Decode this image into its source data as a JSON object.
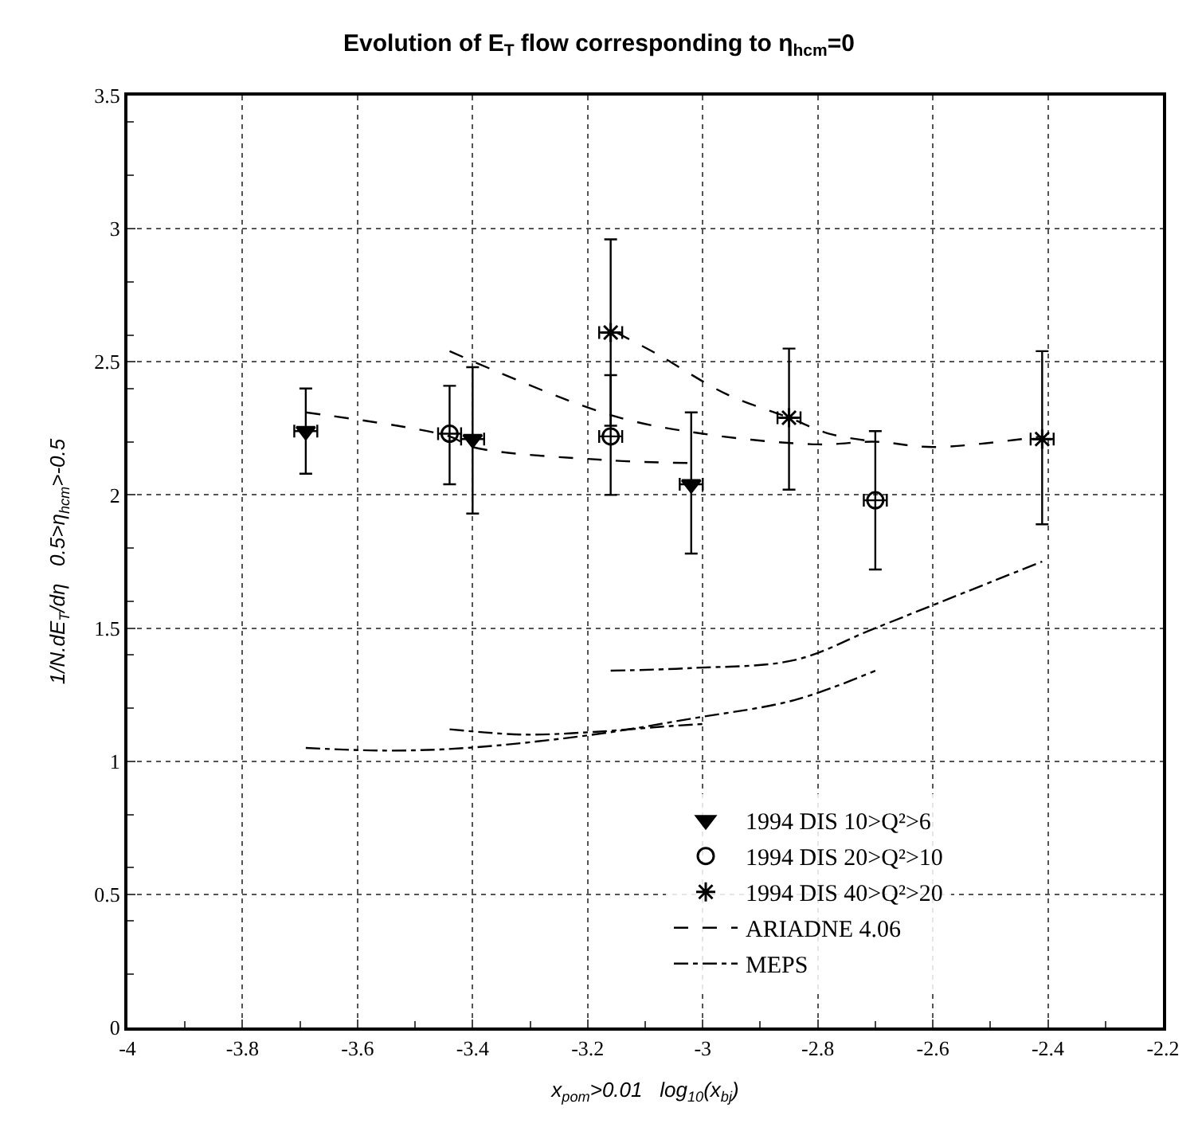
{
  "chart_data": {
    "type": "scatter",
    "title": "Evolution of E$_{T}$ flow corresponding to η$_{hcm}$=0",
    "xlabel": "x$_{pom}$>0.01   log$_{10}$(x$_{bj}$)",
    "ylabel": "1/N.dE$_{T}$/dη   0.5>η$_{hcm}$>-0.5",
    "xlim": [
      -4,
      -2.2
    ],
    "xticks": [
      -4,
      -3.8,
      -3.6,
      -3.4,
      -3.2,
      -3,
      -2.8,
      -2.6,
      -2.4,
      -2.2
    ],
    "ylim": [
      0,
      3.5
    ],
    "yticks": [
      0,
      0.5,
      1,
      1.5,
      2,
      2.5,
      3,
      3.5
    ],
    "grid": true,
    "legend": "bottom right",
    "series": [
      {
        "name": "1994 DIS 10>Q²>6",
        "marker": "triangle",
        "color": "#000000",
        "x": [
          -3.69,
          -3.4,
          -3.02
        ],
        "values": [
          2.24,
          2.21,
          2.04
        ],
        "errors": [
          [
            2.08,
            2.4
          ],
          [
            1.93,
            2.48
          ],
          [
            1.78,
            2.31
          ]
        ],
        "xerrors": [
          0.02,
          0.02,
          0.02
        ]
      },
      {
        "name": "1994 DIS 20>Q²>10",
        "marker": "circle",
        "color": "#000000",
        "x": [
          -3.44,
          -3.16,
          -2.7
        ],
        "values": [
          2.23,
          2.22,
          1.98
        ],
        "errors": [
          [
            2.04,
            2.41
          ],
          [
            2.0,
            2.45
          ],
          [
            1.72,
            2.24
          ]
        ],
        "xerrors": [
          0.02,
          0.02,
          0.02
        ]
      },
      {
        "name": "1994 DIS 40>Q²>20",
        "marker": "cross",
        "color": "#000000",
        "x": [
          -3.16,
          -2.85,
          -2.41
        ],
        "values": [
          2.61,
          2.29,
          2.21
        ],
        "errors": [
          [
            2.26,
            2.96
          ],
          [
            2.02,
            2.55
          ],
          [
            1.89,
            2.54
          ]
        ],
        "xerrors": [
          0.02,
          0.02,
          0.02
        ]
      },
      {
        "name": "ARIADNE 4.06",
        "type": "line",
        "marker": "none",
        "line_style": "dashed",
        "color": "#000000",
        "x": [
          -3.69,
          -3.44,
          -3.4,
          -3.16,
          -3.02
        ],
        "values": [
          2.31,
          2.22,
          2.18,
          2.13,
          2.12
        ]
      },
      {
        "type": "line",
        "marker": "none",
        "line_style": "dashed",
        "color": "#000000",
        "x": [
          -3.44,
          -3.16,
          -3.0,
          -2.8,
          -2.7,
          -2.6,
          -2.41
        ],
        "values": [
          2.54,
          2.3,
          2.23,
          2.19,
          2.2,
          2.18,
          2.22
        ]
      },
      {
        "type": "line",
        "marker": "none",
        "line_style": "dashed",
        "color": "#000000",
        "x": [
          -3.15,
          -3.08,
          -2.96,
          -2.85,
          -2.78,
          -2.7
        ],
        "values": [
          2.61,
          2.53,
          2.38,
          2.29,
          2.23,
          2.2
        ]
      },
      {
        "name": "MEPS",
        "type": "line",
        "marker": "none",
        "line_style": "dashdot",
        "color": "#000000",
        "x": [
          -3.16,
          -3.02,
          -2.84,
          -2.7,
          -2.41
        ],
        "values": [
          1.34,
          1.35,
          1.38,
          1.5,
          1.75
        ]
      },
      {
        "type": "line",
        "marker": "none",
        "line_style": "dashdot",
        "color": "#000000",
        "x": [
          -3.69,
          -3.55,
          -3.41,
          -3.19,
          -3.02,
          -2.84,
          -2.7
        ],
        "values": [
          1.05,
          1.04,
          1.05,
          1.1,
          1.16,
          1.23,
          1.34
        ]
      },
      {
        "type": "line",
        "marker": "none",
        "line_style": "dashdot",
        "color": "#000000",
        "x": [
          -3.44,
          -3.31,
          -3.19,
          -3.07,
          -3.0
        ],
        "values": [
          1.12,
          1.1,
          1.11,
          1.13,
          1.14
        ]
      }
    ]
  }
}
